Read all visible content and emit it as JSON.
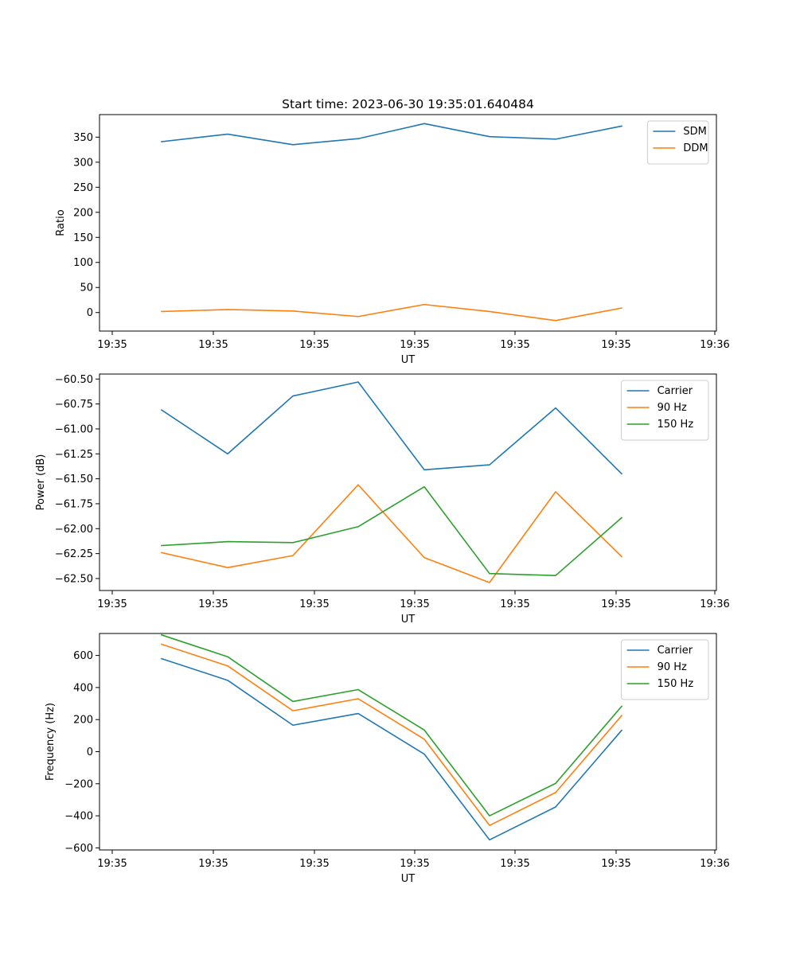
{
  "figure_title": "Start time: 2023-06-30 19:35:01.640484",
  "colors": {
    "blue": "#1f77b4",
    "orange": "#ff7f0e",
    "green": "#2ca02c"
  },
  "chart_data": [
    {
      "type": "line",
      "title": "Start time: 2023-06-30 19:35:01.640484",
      "xlabel": "UT",
      "ylabel": "Ratio",
      "x_tick_labels": [
        "19:35",
        "19:35",
        "19:35",
        "19:35",
        "19:35",
        "19:35",
        "19:35",
        "19:36"
      ],
      "y_ticks": [
        0,
        50,
        100,
        150,
        200,
        250,
        300,
        350
      ],
      "ylim": [
        -37,
        395
      ],
      "legend_position": "top-right",
      "series": [
        {
          "name": "SDM",
          "color": "#1f77b4",
          "values": [
            341,
            356,
            335,
            347,
            377,
            351,
            346,
            372
          ]
        },
        {
          "name": "DDM",
          "color": "#ff7f0e",
          "values": [
            2,
            6,
            3,
            -8,
            16,
            2,
            -16,
            9
          ]
        }
      ]
    },
    {
      "type": "line",
      "xlabel": "UT",
      "ylabel": "Power (dB)",
      "x_tick_labels": [
        "19:35",
        "19:35",
        "19:35",
        "19:35",
        "19:35",
        "19:35",
        "19:35",
        "19:36"
      ],
      "y_ticks": [
        -60.5,
        -60.75,
        -61.0,
        -61.25,
        -61.5,
        -61.75,
        -62.0,
        -62.25,
        -62.5
      ],
      "y_tick_labels": [
        "−60.50",
        "−60.75",
        "−61.00",
        "−61.25",
        "−61.50",
        "−61.75",
        "−62.00",
        "−62.25",
        "−62.50"
      ],
      "ylim": [
        -62.62,
        -60.45
      ],
      "legend_position": "top-right",
      "series": [
        {
          "name": "Carrier",
          "color": "#1f77b4",
          "values": [
            -60.81,
            -61.25,
            -60.67,
            -60.53,
            -61.41,
            -61.36,
            -60.79,
            -61.45
          ]
        },
        {
          "name": "90 Hz",
          "color": "#ff7f0e",
          "values": [
            -62.24,
            -62.39,
            -62.27,
            -61.56,
            -62.29,
            -62.54,
            -61.63,
            -62.28
          ]
        },
        {
          "name": "150 Hz",
          "color": "#2ca02c",
          "values": [
            -62.17,
            -62.13,
            -62.14,
            -61.98,
            -61.58,
            -62.45,
            -62.47,
            -61.89
          ]
        }
      ]
    },
    {
      "type": "line",
      "xlabel": "UT",
      "ylabel": "Frequency (Hz)",
      "x_tick_labels": [
        "19:35",
        "19:35",
        "19:35",
        "19:35",
        "19:35",
        "19:35",
        "19:35",
        "19:36"
      ],
      "y_ticks": [
        -600,
        -400,
        -200,
        0,
        200,
        400,
        600
      ],
      "y_tick_labels": [
        "−600",
        "−400",
        "−200",
        "0",
        "200",
        "400",
        "600"
      ],
      "ylim": [
        -613,
        737
      ],
      "legend_position": "top-right",
      "series": [
        {
          "name": "Carrier",
          "color": "#1f77b4",
          "values": [
            580,
            445,
            165,
            238,
            -15,
            -550,
            -345,
            133
          ]
        },
        {
          "name": "90 Hz",
          "color": "#ff7f0e",
          "values": [
            670,
            535,
            255,
            330,
            78,
            -460,
            -255,
            225
          ]
        },
        {
          "name": "150 Hz",
          "color": "#2ca02c",
          "values": [
            728,
            592,
            313,
            387,
            135,
            -400,
            -198,
            283
          ]
        }
      ]
    }
  ]
}
